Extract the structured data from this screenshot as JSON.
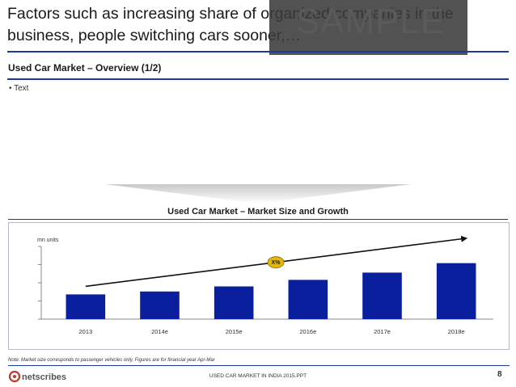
{
  "slide": {
    "title": "Factors such as increasing share of organized companies in the business, people switching cars sooner,…",
    "watermark": "SAMPLE",
    "subtitle": "Used Car Market – Overview (1/2)",
    "bullet": "• Text",
    "note": "Note: Market size corresponds to passenger vehicles only, Figures are for financial year Apr-Mar",
    "footer": "USED CAR MARKET IN INDIA 2015.PPT",
    "page_number": "8",
    "logo_text": "netscribes",
    "colors": {
      "accent": "#1f3a93",
      "bar": "#0a1f9e"
    }
  },
  "chart_data": {
    "type": "bar",
    "title": "Used Car Market – Market Size and Growth",
    "ylabel": "mn units",
    "categories": [
      "2013",
      "2014e",
      "2015e",
      "2016e",
      "2017e",
      "2018e"
    ],
    "values": [
      3.4,
      3.8,
      4.5,
      5.4,
      6.4,
      7.7
    ],
    "ylim": [
      0,
      10
    ],
    "annotation": "X%",
    "trend_arrow": true,
    "grid": false
  }
}
